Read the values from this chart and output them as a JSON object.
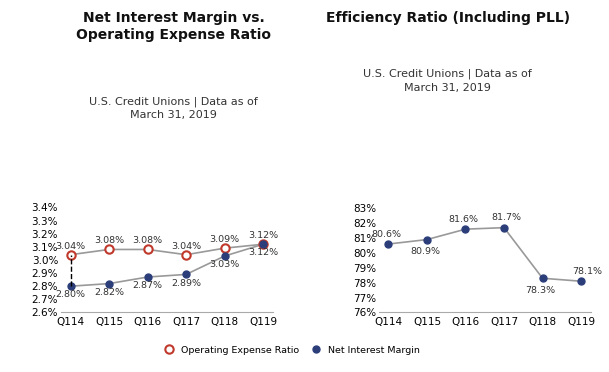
{
  "quarters": [
    "Q114",
    "Q115",
    "Q116",
    "Q117",
    "Q118",
    "Q119"
  ],
  "op_expense_ratio": [
    3.04,
    3.08,
    3.08,
    3.04,
    3.09,
    3.12
  ],
  "net_interest_margin": [
    2.8,
    2.82,
    2.87,
    2.89,
    3.03,
    3.12
  ],
  "efficiency_ratio": [
    80.6,
    80.9,
    81.6,
    81.7,
    78.3,
    78.1
  ],
  "left_title_line1": "Net Interest Margin vs.",
  "left_title_line2": "Operating Expense Ratio",
  "left_subtitle": "U.S. Credit Unions | Data as of\nMarch 31, 2019",
  "right_title": "Efficiency Ratio (Including PLL)",
  "right_subtitle": "U.S. Credit Unions | Data as of\nMarch 31, 2019",
  "left_ylim": [
    2.6,
    3.45
  ],
  "left_yticks": [
    2.6,
    2.7,
    2.8,
    2.9,
    3.0,
    3.1,
    3.2,
    3.3,
    3.4
  ],
  "right_ylim": [
    76,
    83.5
  ],
  "right_yticks": [
    76,
    77,
    78,
    79,
    80,
    81,
    82,
    83
  ],
  "op_color": "#c0392b",
  "nim_color": "#2c3e7a",
  "eff_color": "#2c3e7a",
  "line_color": "#999999",
  "bg_color": "#ffffff",
  "op_labels": [
    "3.04%",
    "3.08%",
    "3.08%",
    "3.04%",
    "3.09%",
    "3.12%"
  ],
  "nim_labels": [
    "2.80%",
    "2.82%",
    "2.87%",
    "2.89%",
    "3.03%",
    "3.12%"
  ],
  "eff_labels": [
    "80.6%",
    "80.9%",
    "81.6%",
    "81.7%",
    "78.3%",
    "78.1%"
  ],
  "label_fontsize": 6.8,
  "tick_fontsize": 7.5,
  "title_fontsize": 10.0,
  "subtitle_fontsize": 8.0
}
